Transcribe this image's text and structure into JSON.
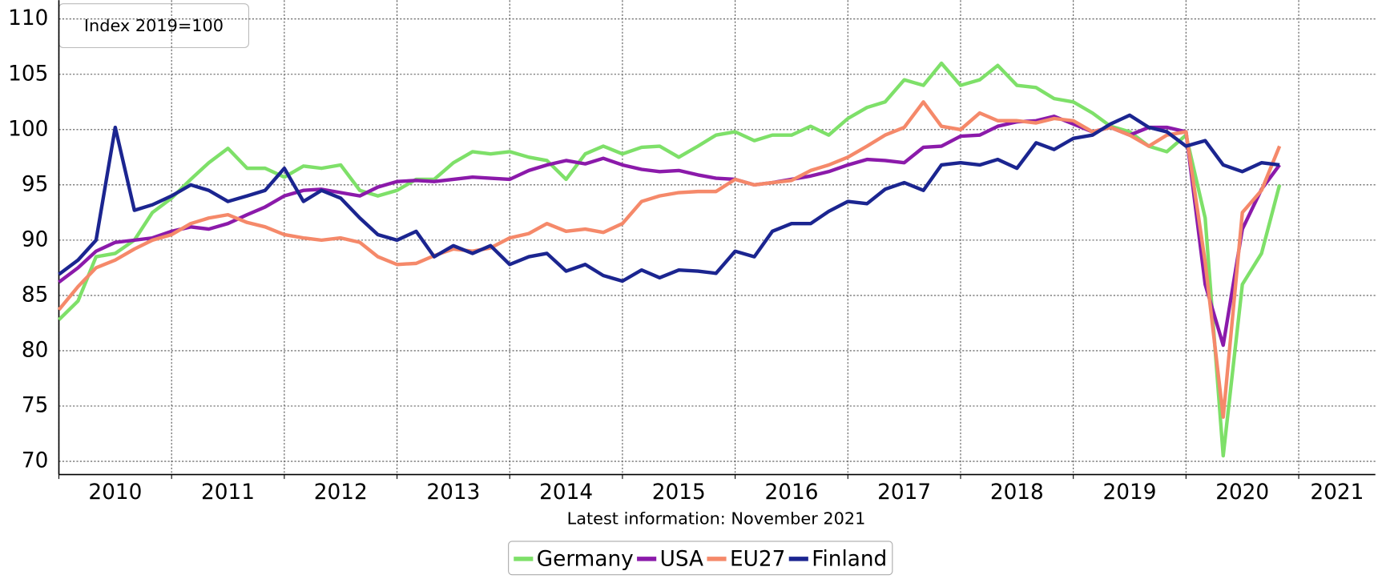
{
  "chart_data": {
    "type": "line",
    "annotation": "Index 2019=100",
    "xlabel": "Latest information: November 2021",
    "x": [
      2010,
      2010.17,
      2010.33,
      2010.5,
      2010.67,
      2010.83,
      2011,
      2011.17,
      2011.33,
      2011.5,
      2011.67,
      2011.83,
      2012,
      2012.17,
      2012.33,
      2012.5,
      2012.67,
      2012.83,
      2013,
      2013.17,
      2013.33,
      2013.5,
      2013.67,
      2013.83,
      2014,
      2014.17,
      2014.33,
      2014.5,
      2014.67,
      2014.83,
      2015,
      2015.17,
      2015.33,
      2015.5,
      2015.67,
      2015.83,
      2016,
      2016.17,
      2016.33,
      2016.5,
      2016.67,
      2016.83,
      2017,
      2017.17,
      2017.33,
      2017.5,
      2017.67,
      2017.83,
      2018,
      2018.17,
      2018.33,
      2018.5,
      2018.67,
      2018.83,
      2019,
      2019.17,
      2019.33,
      2019.5,
      2019.67,
      2019.83,
      2020,
      2020.17,
      2020.33,
      2020.5,
      2020.67,
      2020.83
    ],
    "series": [
      {
        "name": "Germany",
        "color": "#7ee069",
        "values": [
          82.8,
          84.5,
          88.5,
          88.8,
          90,
          92.5,
          93.8,
          95.5,
          97,
          98.3,
          96.5,
          96.5,
          95.7,
          96.7,
          96.5,
          96.8,
          94.5,
          94,
          94.5,
          95.5,
          95.5,
          97,
          98,
          97.8,
          98,
          97.5,
          97.2,
          95.5,
          97.8,
          98.5,
          97.8,
          98.4,
          98.5,
          97.5,
          98.5,
          99.5,
          99.8,
          99,
          99.5,
          99.5,
          100.3,
          99.5,
          101,
          102,
          102.5,
          104.5,
          104,
          106,
          104,
          104.5,
          105.8,
          104,
          103.8,
          102.8,
          102.5,
          101.5,
          100.3,
          99.8,
          98.5,
          98,
          99.5,
          92,
          70.5,
          86,
          88.8,
          95
        ]
      },
      {
        "name": "USA",
        "color": "#8b1aaa",
        "values": [
          86.2,
          87.5,
          89,
          89.8,
          90,
          90.2,
          90.8,
          91.2,
          91,
          91.5,
          92.3,
          93,
          94,
          94.5,
          94.6,
          94.3,
          94,
          94.8,
          95.3,
          95.4,
          95.3,
          95.5,
          95.7,
          95.6,
          95.5,
          96.3,
          96.8,
          97.2,
          96.9,
          97.4,
          96.8,
          96.4,
          96.2,
          96.3,
          95.9,
          95.6,
          95.5,
          95,
          95.2,
          95.5,
          95.8,
          96.2,
          96.8,
          97.3,
          97.2,
          97,
          98.4,
          98.5,
          99.4,
          99.5,
          100.3,
          100.7,
          100.8,
          101.2,
          100.5,
          99.8,
          100.2,
          99.5,
          100.2,
          100.2,
          99.8,
          86,
          80.5,
          91,
          94.6,
          96.8
        ]
      },
      {
        "name": "EU27",
        "color": "#f5896a",
        "values": [
          83.7,
          85.8,
          87.5,
          88.2,
          89.2,
          90,
          90.5,
          91.5,
          92,
          92.3,
          91.6,
          91.2,
          90.5,
          90.2,
          90,
          90.2,
          89.8,
          88.5,
          87.8,
          87.9,
          88.6,
          89.2,
          89,
          89.3,
          90.2,
          90.6,
          91.5,
          90.8,
          91,
          90.7,
          91.5,
          93.5,
          94,
          94.3,
          94.4,
          94.4,
          95.5,
          95,
          95.2,
          95.4,
          96.3,
          96.8,
          97.5,
          98.5,
          99.5,
          100.2,
          102.5,
          100.3,
          100,
          101.5,
          100.8,
          100.8,
          100.6,
          101,
          100.8,
          99.8,
          100.2,
          99.5,
          98.5,
          99.5,
          99.8,
          88,
          74,
          92.5,
          94.5,
          98.5
        ]
      },
      {
        "name": "Finland",
        "color": "#1b2590",
        "values": [
          86.9,
          88.2,
          90,
          100.2,
          92.7,
          93.2,
          94,
          95,
          94.5,
          93.5,
          94,
          94.5,
          96.5,
          93.5,
          94.5,
          93.8,
          92,
          90.5,
          90,
          90.8,
          88.5,
          89.5,
          88.8,
          89.5,
          87.8,
          88.5,
          88.8,
          87.2,
          87.8,
          86.8,
          86.3,
          87.3,
          86.6,
          87.3,
          87.2,
          87,
          89,
          88.5,
          90.8,
          91.5,
          91.5,
          92.6,
          93.5,
          93.3,
          94.6,
          95.2,
          94.5,
          96.8,
          97,
          96.8,
          97.3,
          96.5,
          98.8,
          98.2,
          99.2,
          99.5,
          100.5,
          101.3,
          100.2,
          99.8,
          98.5,
          99,
          96.8,
          96.2,
          97,
          96.8
        ]
      }
    ],
    "xlim": [
      2010,
      2021.68
    ],
    "xticks": [
      2010,
      2011,
      2012,
      2013,
      2014,
      2015,
      2016,
      2017,
      2018,
      2019,
      2020,
      2021
    ],
    "ylim": [
      68.8,
      111.7
    ],
    "yticks": [
      70,
      75,
      80,
      85,
      90,
      95,
      100,
      105,
      110
    ],
    "grid": true,
    "legend": "bottom"
  }
}
